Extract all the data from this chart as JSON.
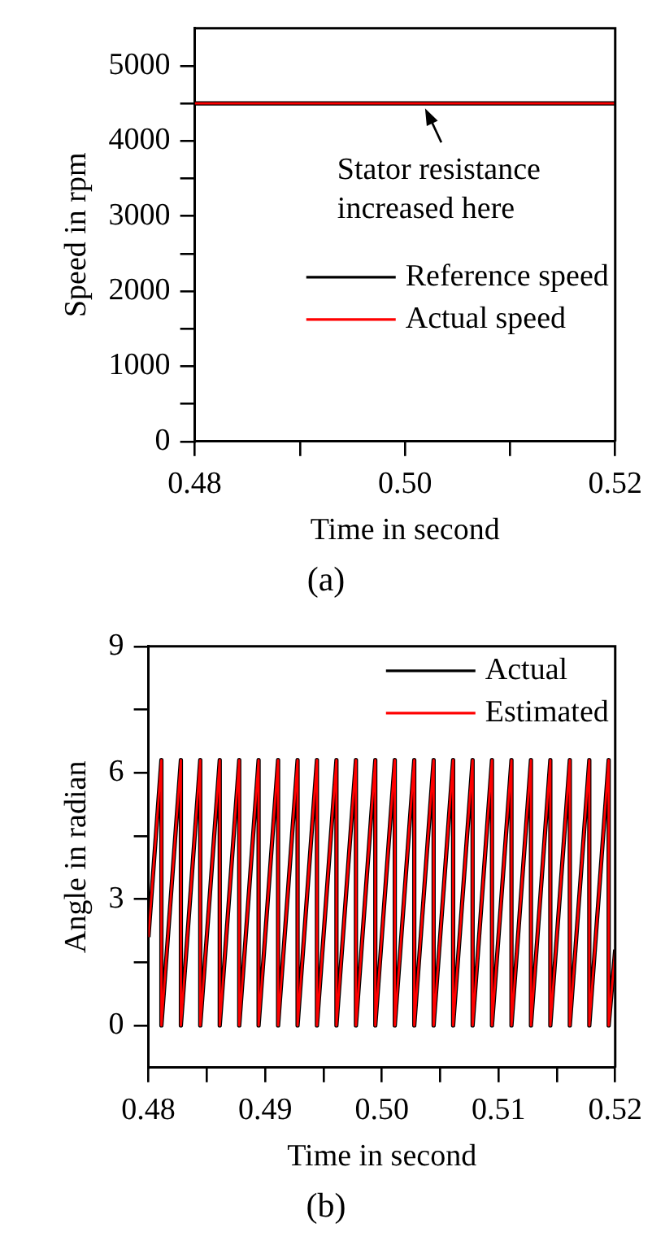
{
  "chart_data": [
    {
      "type": "line",
      "xlabel": "Time in second",
      "ylabel": "Speed in rpm",
      "x": [
        0.48,
        0.52
      ],
      "series": [
        {
          "name": "Reference speed",
          "color": "#000000",
          "values": [
            4500,
            4500
          ]
        },
        {
          "name": "Actual speed",
          "color": "#ff0000",
          "values": [
            4500,
            4500
          ]
        }
      ],
      "xlim": [
        0.48,
        0.52
      ],
      "xticks": [
        0.48,
        {
          "value": 0.49,
          "label": null
        },
        {
          "value": 0.5,
          "label": "0.50"
        },
        {
          "value": 0.51,
          "label": null
        },
        0.52
      ],
      "ylim": [
        0,
        5500
      ],
      "yticks": [
        0,
        {
          "value": 500,
          "label": null
        },
        1000,
        {
          "value": 1500,
          "label": null
        },
        2000,
        {
          "value": 2500,
          "label": null
        },
        3000,
        {
          "value": 3500,
          "label": null
        },
        4000,
        {
          "value": 4500,
          "label": null
        },
        5000
      ],
      "legend": "bottom right",
      "grid": false,
      "marker": "none",
      "line_style": "solid",
      "annotations": [
        {
          "text": "Stator resistance increased here",
          "x": 0.5016,
          "y": 4500
        },
        "(a)"
      ]
    },
    {
      "type": "line",
      "xlabel": "Time in second",
      "ylabel": "Angle in radian",
      "x": [
        0.48,
        0.48111,
        0.48111,
        0.48278,
        0.48278,
        0.48444,
        0.48444,
        0.48611,
        0.48611,
        0.48778,
        0.48778,
        0.48944,
        0.48944,
        0.49111,
        0.49111,
        0.49278,
        0.49278,
        0.49444,
        0.49444,
        0.49611,
        0.49611,
        0.49778,
        0.49778,
        0.49944,
        0.49944,
        0.50111,
        0.50111,
        0.50278,
        0.50278,
        0.50444,
        0.50444,
        0.50611,
        0.50611,
        0.50778,
        0.50778,
        0.50944,
        0.50944,
        0.51111,
        0.51111,
        0.51278,
        0.51278,
        0.51444,
        0.51444,
        0.51611,
        0.51611,
        0.51778,
        0.51778,
        0.51944,
        0.51944,
        0.52
      ],
      "series": [
        {
          "name": "Actual",
          "color": "#000000",
          "values": [
            2.1,
            6.3,
            0,
            6.3,
            0,
            6.3,
            0,
            6.3,
            0,
            6.3,
            0,
            6.3,
            0,
            6.3,
            0,
            6.3,
            0,
            6.3,
            0,
            6.3,
            0,
            6.3,
            0,
            6.3,
            0,
            6.3,
            0,
            6.3,
            0,
            6.3,
            0,
            6.3,
            0,
            6.3,
            0,
            6.3,
            0,
            6.3,
            0,
            6.3,
            0,
            6.3,
            0,
            6.3,
            0,
            6.3,
            0,
            6.3,
            0,
            1.8
          ]
        },
        {
          "name": "Estimated",
          "color": "#ff0000",
          "values": [
            2.1,
            6.3,
            0,
            6.3,
            0,
            6.3,
            0,
            6.3,
            0,
            6.3,
            0,
            6.3,
            0,
            6.3,
            0,
            6.3,
            0,
            6.3,
            0,
            6.3,
            0,
            6.3,
            0,
            6.3,
            0,
            6.3,
            0,
            6.3,
            0,
            6.3,
            0,
            6.3,
            0,
            6.3,
            0,
            6.3,
            0,
            6.3,
            0,
            6.3,
            0,
            6.3,
            0,
            6.3,
            0,
            6.3,
            0,
            6.3,
            0,
            1.8
          ]
        }
      ],
      "xlim": [
        0.48,
        0.52
      ],
      "xticks": [
        0.48,
        {
          "value": 0.485,
          "label": null
        },
        0.49,
        {
          "value": 0.495,
          "label": null
        },
        {
          "value": 0.5,
          "label": "0.50"
        },
        {
          "value": 0.505,
          "label": null
        },
        0.51,
        {
          "value": 0.515,
          "label": null
        },
        0.52
      ],
      "ylim": [
        -1,
        9
      ],
      "yticks": [
        0,
        {
          "value": 1.5,
          "label": null
        },
        3,
        {
          "value": 4.5,
          "label": null
        },
        6,
        {
          "value": 7.5,
          "label": null
        },
        9
      ],
      "legend": "top right",
      "grid": false,
      "marker": "none",
      "line_style": "solid",
      "annotations": [
        "(b)"
      ]
    }
  ]
}
